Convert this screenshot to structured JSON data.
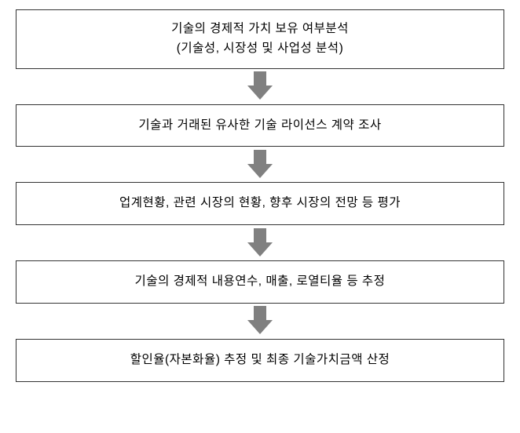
{
  "flowchart": {
    "type": "flowchart",
    "direction": "vertical",
    "background_color": "#ffffff",
    "box_border_color": "#333333",
    "box_border_width": 1.5,
    "box_background_color": "#ffffff",
    "arrow_color": "#808080",
    "text_color": "#000000",
    "font_size": 15.5,
    "font_family": "Malgun Gothic",
    "steps": [
      {
        "lines": [
          "기술의 경제적 가치 보유 여부분석",
          "(기술성, 시장성 및 사업성 분석)"
        ]
      },
      {
        "lines": [
          "기술과 거래된 유사한 기술 라이선스 계약 조사"
        ]
      },
      {
        "lines": [
          "업계현황, 관련 시장의 현황, 향후 시장의 전망 등 평가"
        ]
      },
      {
        "lines": [
          "기술의 경제적 내용연수, 매출, 로열티율 등 추정"
        ]
      },
      {
        "lines": [
          "할인율(자본화율) 추정 및 최종 기술가치금액 산정"
        ]
      }
    ]
  }
}
